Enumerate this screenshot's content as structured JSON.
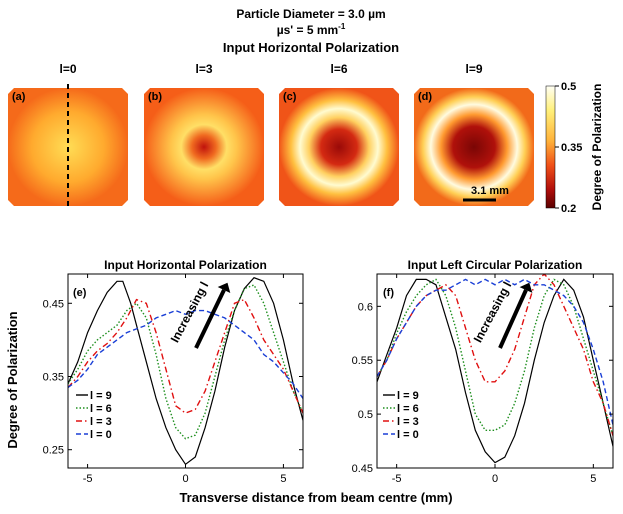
{
  "header": {
    "line1": "Particle Diameter = 3.0 µm",
    "line2_main": "µs' = 5 mm",
    "line2_sup": "-1",
    "line3": "Input Horizontal Polarization"
  },
  "image_panels": [
    {
      "label": "l=0",
      "tag": "(a)",
      "ring": 0.0
    },
    {
      "label": "l=3",
      "tag": "(b)",
      "ring": 0.4
    },
    {
      "label": "l=6",
      "tag": "(c)",
      "ring": 0.62
    },
    {
      "label": "l=9",
      "tag": "(d)",
      "ring": 0.8
    }
  ],
  "scalebar_label": "3.1 mm",
  "colorbar": {
    "title": "Degree of Polarization",
    "ticks": [
      "0.5",
      "0.35",
      "0.2"
    ],
    "tick_values": [
      0.5,
      0.35,
      0.2
    ],
    "range": [
      0.2,
      0.5
    ],
    "colors": [
      "#fffff5",
      "#fff07a",
      "#ffb23a",
      "#f05018",
      "#b00e0b",
      "#5a0000"
    ]
  },
  "chart_data": [
    {
      "type": "line",
      "panel": "(e)",
      "title": "Input Horizontal Polarization",
      "xlabel": "Transverse distance from beam centre (mm)",
      "ylabel": "Degree of Polarization",
      "xlim": [
        -6,
        6
      ],
      "ylim": [
        0.225,
        0.49
      ],
      "xticks": [
        -5,
        0,
        5
      ],
      "yticks": [
        0.25,
        0.35,
        0.45
      ],
      "xtick_labels": [
        "-5",
        "0",
        "5"
      ],
      "ytick_labels": [
        "0.25",
        "0.35",
        "0.45"
      ],
      "annotation": "Increasing l",
      "series": [
        {
          "name": "l = 9",
          "color": "#000000",
          "style": "solid",
          "x": [
            -6,
            -5.5,
            -5,
            -4.5,
            -4,
            -3.5,
            -3.2,
            -2.8,
            -2.5,
            -2,
            -1.5,
            -1,
            -0.5,
            0,
            0.5,
            1,
            1.5,
            2,
            2.5,
            3,
            3.5,
            4,
            4.5,
            5,
            5.5,
            6
          ],
          "y": [
            0.34,
            0.37,
            0.41,
            0.44,
            0.465,
            0.48,
            0.48,
            0.45,
            0.42,
            0.37,
            0.32,
            0.28,
            0.25,
            0.23,
            0.24,
            0.28,
            0.33,
            0.39,
            0.44,
            0.47,
            0.485,
            0.48,
            0.45,
            0.4,
            0.34,
            0.29
          ]
        },
        {
          "name": "l = 6",
          "color": "#1f8f1f",
          "style": "dotted",
          "x": [
            -6,
            -5.5,
            -5,
            -4.5,
            -4,
            -3.5,
            -3,
            -2.5,
            -2,
            -1.5,
            -1,
            -0.5,
            0,
            0.5,
            1,
            1.5,
            2,
            2.5,
            3,
            3.5,
            4,
            4.5,
            5,
            5.5,
            6
          ],
          "y": [
            0.34,
            0.36,
            0.385,
            0.4,
            0.41,
            0.42,
            0.44,
            0.45,
            0.43,
            0.38,
            0.32,
            0.28,
            0.265,
            0.27,
            0.3,
            0.35,
            0.4,
            0.44,
            0.47,
            0.475,
            0.45,
            0.41,
            0.37,
            0.33,
            0.3
          ]
        },
        {
          "name": "l = 3",
          "color": "#e01010",
          "style": "dashdot",
          "x": [
            -6,
            -5.5,
            -5,
            -4.5,
            -4,
            -3.5,
            -3,
            -2.5,
            -2,
            -1.5,
            -1,
            -0.5,
            0,
            0.5,
            1,
            1.5,
            2,
            2.5,
            3,
            3.5,
            4,
            4.5,
            5,
            5.5,
            6
          ],
          "y": [
            0.335,
            0.35,
            0.37,
            0.385,
            0.395,
            0.41,
            0.43,
            0.455,
            0.45,
            0.41,
            0.36,
            0.31,
            0.3,
            0.305,
            0.33,
            0.37,
            0.41,
            0.45,
            0.455,
            0.43,
            0.4,
            0.38,
            0.36,
            0.33,
            0.3
          ]
        },
        {
          "name": "l = 0",
          "color": "#1a3fd6",
          "style": "dashed",
          "x": [
            -6,
            -5.5,
            -5,
            -4.5,
            -4,
            -3.5,
            -3,
            -2.5,
            -2,
            -1.5,
            -1,
            -0.5,
            0,
            0.5,
            1,
            1.5,
            2,
            2.5,
            3,
            3.5,
            4,
            4.5,
            5,
            5.5,
            6
          ],
          "y": [
            0.335,
            0.345,
            0.36,
            0.38,
            0.39,
            0.4,
            0.41,
            0.415,
            0.42,
            0.43,
            0.435,
            0.44,
            0.435,
            0.44,
            0.44,
            0.435,
            0.43,
            0.42,
            0.41,
            0.4,
            0.38,
            0.37,
            0.355,
            0.34,
            0.32
          ]
        }
      ]
    },
    {
      "type": "line",
      "panel": "(f)",
      "title": "Input Left Circular Polarization",
      "xlabel": "",
      "ylabel": "",
      "xlim": [
        -6,
        6
      ],
      "ylim": [
        0.45,
        0.63
      ],
      "xticks": [
        -5,
        0,
        5
      ],
      "yticks": [
        0.45,
        0.5,
        0.55,
        0.6
      ],
      "xtick_labels": [
        "-5",
        "0",
        "5"
      ],
      "ytick_labels": [
        "0.45",
        "0.5",
        "0.55",
        "0.6"
      ],
      "annotation": "Increasing l",
      "series": [
        {
          "name": "l = 9",
          "color": "#000000",
          "style": "solid",
          "x": [
            -6,
            -5.5,
            -5,
            -4.5,
            -4,
            -3.5,
            -3,
            -2.5,
            -2,
            -1.5,
            -1,
            -0.5,
            0,
            0.5,
            1,
            1.5,
            2,
            2.5,
            3,
            3.5,
            4,
            4.5,
            5,
            5.5,
            6
          ],
          "y": [
            0.53,
            0.555,
            0.58,
            0.61,
            0.625,
            0.625,
            0.62,
            0.59,
            0.56,
            0.52,
            0.485,
            0.465,
            0.455,
            0.46,
            0.48,
            0.51,
            0.55,
            0.585,
            0.61,
            0.625,
            0.615,
            0.59,
            0.55,
            0.51,
            0.47
          ]
        },
        {
          "name": "l = 6",
          "color": "#1f8f1f",
          "style": "dotted",
          "x": [
            -6,
            -5.5,
            -5,
            -4.5,
            -4,
            -3.5,
            -3,
            -2.5,
            -2,
            -1.5,
            -1,
            -0.5,
            0,
            0.5,
            1,
            1.5,
            2,
            2.5,
            3,
            3.5,
            4,
            4.5,
            5,
            5.5,
            6
          ],
          "y": [
            0.535,
            0.55,
            0.575,
            0.595,
            0.61,
            0.62,
            0.625,
            0.61,
            0.58,
            0.54,
            0.5,
            0.485,
            0.485,
            0.49,
            0.51,
            0.54,
            0.58,
            0.61,
            0.625,
            0.62,
            0.6,
            0.57,
            0.54,
            0.51,
            0.48
          ]
        },
        {
          "name": "l = 3",
          "color": "#e01010",
          "style": "dashdot",
          "x": [
            -6,
            -5.5,
            -5,
            -4.5,
            -4,
            -3.5,
            -3,
            -2.5,
            -2,
            -1.5,
            -1,
            -0.5,
            0,
            0.5,
            1,
            1.5,
            2,
            2.5,
            3,
            3.5,
            4,
            4.5,
            5,
            5.5,
            6
          ],
          "y": [
            0.535,
            0.55,
            0.57,
            0.585,
            0.6,
            0.61,
            0.615,
            0.62,
            0.61,
            0.58,
            0.55,
            0.53,
            0.53,
            0.54,
            0.56,
            0.59,
            0.62,
            0.63,
            0.62,
            0.6,
            0.58,
            0.56,
            0.53,
            0.51,
            0.48
          ]
        },
        {
          "name": "l = 0",
          "color": "#1a3fd6",
          "style": "dashed",
          "x": [
            -6,
            -5.5,
            -5,
            -4.5,
            -4,
            -3.5,
            -3,
            -2.5,
            -2,
            -1.5,
            -1,
            -0.5,
            0,
            0.5,
            1,
            1.5,
            2,
            2.5,
            3,
            3.5,
            4,
            4.5,
            5,
            5.5,
            6
          ],
          "y": [
            0.535,
            0.55,
            0.57,
            0.585,
            0.6,
            0.61,
            0.615,
            0.615,
            0.62,
            0.625,
            0.62,
            0.625,
            0.62,
            0.625,
            0.62,
            0.625,
            0.62,
            0.62,
            0.615,
            0.61,
            0.6,
            0.585,
            0.56,
            0.53,
            0.49
          ]
        }
      ]
    }
  ]
}
